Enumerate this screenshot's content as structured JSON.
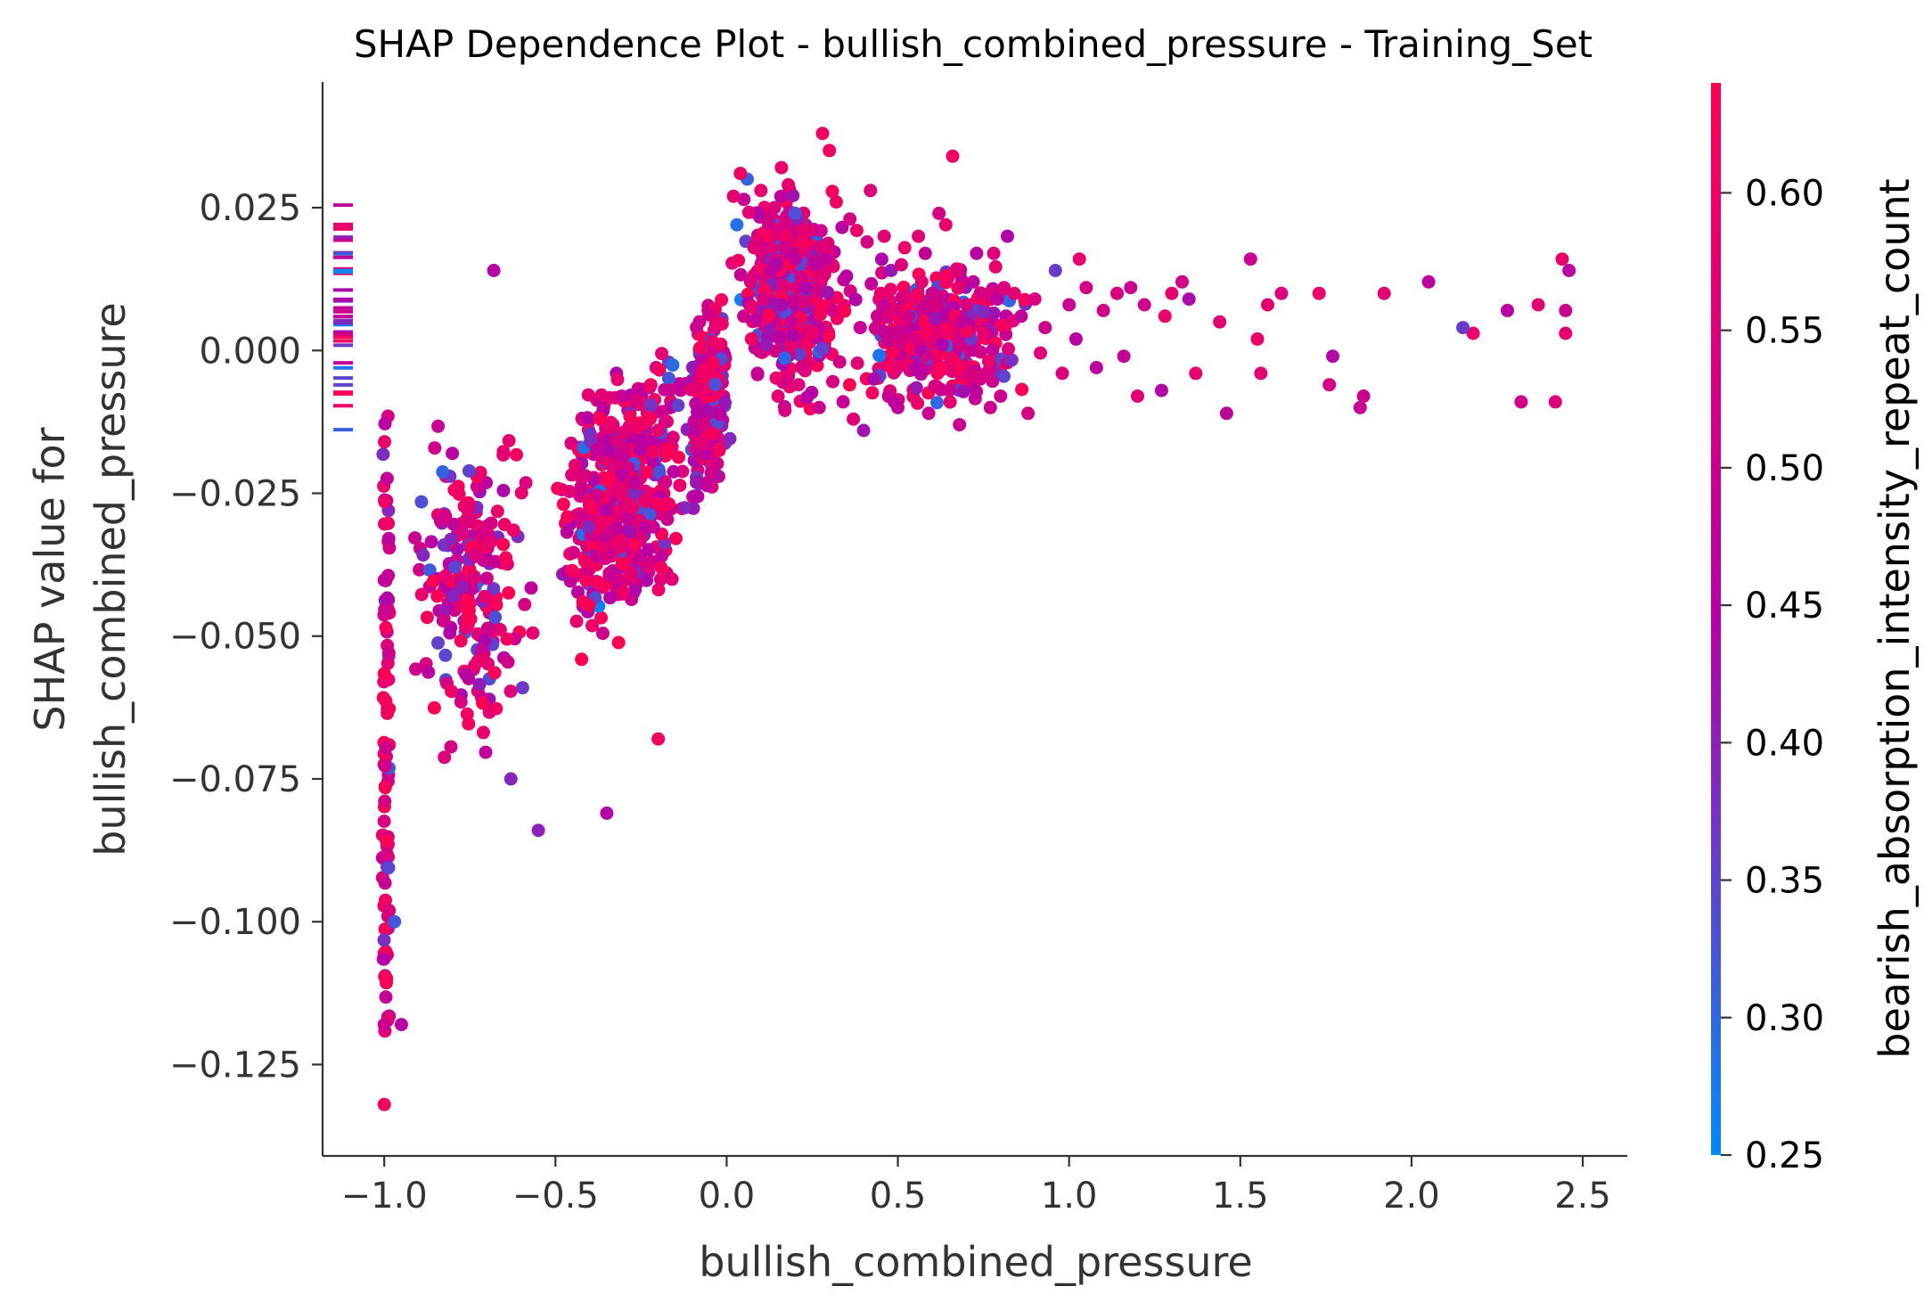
{
  "chart_data": {
    "type": "scatter",
    "title": "SHAP Dependence Plot - bullish_combined_pressure - Training_Set",
    "xlabel": "bullish_combined_pressure",
    "ylabel_line1": "SHAP value for",
    "ylabel_line2": "bullish_combined_pressure",
    "xlim": [
      -1.18,
      2.63
    ],
    "ylim": [
      -0.141,
      0.047
    ],
    "x_ticks": [
      -1.0,
      -0.5,
      0.0,
      0.5,
      1.0,
      1.5,
      2.0,
      2.5
    ],
    "x_tick_labels": [
      "−1.0",
      "−0.5",
      "0.0",
      "0.5",
      "1.0",
      "1.5",
      "2.0",
      "2.5"
    ],
    "y_ticks": [
      0.025,
      0.0,
      -0.025,
      -0.05,
      -0.075,
      -0.1,
      -0.125
    ],
    "y_tick_labels": [
      "0.025",
      "0.000",
      "−0.025",
      "−0.050",
      "−0.075",
      "−0.100",
      "−0.125"
    ],
    "grid": false,
    "colorbar": {
      "label": "bearish_absorption_intensity_repeat_count",
      "range": [
        0.25,
        0.64
      ],
      "ticks": [
        0.6,
        0.55,
        0.5,
        0.45,
        0.4,
        0.35,
        0.3,
        0.25
      ],
      "tick_labels": [
        "0.60",
        "0.55",
        "0.50",
        "0.45",
        "0.40",
        "0.35",
        "0.30",
        "0.25"
      ],
      "color_low": "#008afb",
      "color_mid": "#b700a6",
      "color_high": "#ff0052"
    },
    "series": [
      {
        "x": [
          2.44,
          2.45,
          2.45,
          2.42,
          2.46,
          2.32,
          2.37,
          2.28,
          2.18,
          2.15,
          2.05,
          1.92,
          1.86,
          1.85,
          1.76,
          1.77,
          1.73,
          1.62,
          1.58,
          1.55,
          1.53,
          1.56,
          1.46,
          1.44,
          1.37,
          1.35,
          1.33,
          1.3,
          1.28,
          1.27,
          1.22,
          1.2,
          1.18,
          1.16,
          1.14,
          1.1,
          1.08,
          1.05,
          1.03,
          1.02,
          1.0,
          0.98,
          0.96,
          0.93,
          0.9,
          0.88,
          0.86,
          0.84,
          0.82,
          0.8,
          0.78,
          0.76,
          0.74,
          0.72,
          0.7,
          0.68,
          0.66,
          0.64,
          0.62,
          0.6,
          0.58,
          0.56,
          0.54,
          0.52,
          0.5,
          0.48,
          0.46,
          0.44,
          0.42,
          0.4,
          0.38,
          0.36,
          0.34,
          0.32,
          0.3,
          0.28,
          0.26,
          0.24,
          0.22,
          0.2,
          0.18,
          0.16,
          0.14,
          0.12,
          0.1,
          0.08,
          0.06,
          0.04,
          0.03,
          0.02,
          0.05,
          0.07,
          0.09,
          0.11,
          0.13,
          0.15,
          0.17,
          0.19,
          0.21,
          0.23,
          0.25,
          0.27,
          0.29,
          0.31,
          0.33,
          0.35,
          0.37,
          0.39,
          0.41,
          0.43,
          0.45,
          0.47,
          0.49,
          0.51,
          0.53,
          0.55,
          0.57,
          0.59,
          0.61,
          0.63,
          0.65,
          0.67,
          0.69,
          0.71,
          0.73,
          0.75,
          0.77,
          0.79,
          0.81
        ],
        "y": [
          0.016,
          0.007,
          0.003,
          -0.009,
          0.014,
          -0.009,
          0.008,
          0.007,
          0.003,
          0.004,
          0.012,
          0.01,
          -0.008,
          -0.01,
          -0.006,
          -0.001,
          0.01,
          0.01,
          0.008,
          0.002,
          0.016,
          -0.004,
          -0.011,
          0.005,
          -0.004,
          0.009,
          0.012,
          0.01,
          0.006,
          -0.007,
          0.008,
          -0.008,
          0.011,
          -0.001,
          0.01,
          0.007,
          -0.003,
          0.011,
          0.016,
          0.002,
          0.008,
          -0.004,
          0.014,
          0.004,
          0.009,
          -0.011,
          0.006,
          0.01,
          0.02,
          -0.008,
          0.017,
          0.003,
          -0.005,
          0.012,
          0.008,
          -0.013,
          0.034,
          0.022,
          0.024,
          0.01,
          0.017,
          0.02,
          0.006,
          0.018,
          -0.01,
          0.014,
          0.02,
          0.006,
          0.028,
          -0.014,
          0.021,
          0.023,
          -0.009,
          0.026,
          0.035,
          0.038,
          0.015,
          0.021,
          0.019,
          0.024,
          0.029,
          0.032,
          0.025,
          0.02,
          0.028,
          0.018,
          0.03,
          0.031,
          0.022,
          0.027,
          0.006,
          0.012,
          -0.004,
          0.009,
          0.014,
          -0.008,
          0.018,
          0.005,
          -0.006,
          0.011,
          0.003,
          -0.01,
          0.016,
          0.007,
          -0.002,
          0.013,
          -0.012,
          0.004,
          0.019,
          -0.005,
          0.01,
          0.002,
          -0.009,
          0.015,
          0.006,
          -0.003,
          0.012,
          -0.011,
          0.008,
          0.001,
          -0.007,
          0.014,
          0.005,
          -0.004,
          0.017,
          0.003,
          -0.01,
          0.009,
          0.011
        ],
        "c": [
          0.59,
          0.5,
          0.58,
          0.55,
          0.46,
          0.52,
          0.57,
          0.45,
          0.59,
          0.36,
          0.46,
          0.56,
          0.5,
          0.49,
          0.52,
          0.44,
          0.58,
          0.55,
          0.57,
          0.59,
          0.5,
          0.57,
          0.47,
          0.57,
          0.58,
          0.43,
          0.52,
          0.57,
          0.59,
          0.44,
          0.51,
          0.56,
          0.5,
          0.48,
          0.54,
          0.52,
          0.46,
          0.53,
          0.58,
          0.45,
          0.49,
          0.55,
          0.36,
          0.5,
          0.54,
          0.52,
          0.47,
          0.57,
          0.44,
          0.5,
          0.55,
          0.49,
          0.52,
          0.46,
          0.54,
          0.5,
          0.6,
          0.58,
          0.52,
          0.51,
          0.48,
          0.56,
          0.36,
          0.59,
          0.47,
          0.41,
          0.57,
          0.5,
          0.55,
          0.42,
          0.59,
          0.53,
          0.49,
          0.6,
          0.6,
          0.6,
          0.46,
          0.57,
          0.61,
          0.33,
          0.58,
          0.59,
          0.55,
          0.61,
          0.58,
          0.56,
          0.31,
          0.6,
          0.29,
          0.57,
          0.51,
          0.55,
          0.48,
          0.53,
          0.46,
          0.57,
          0.52,
          0.49,
          0.55,
          0.44,
          0.58,
          0.5,
          0.47,
          0.54,
          0.52,
          0.45,
          0.56,
          0.49,
          0.53,
          0.43,
          0.58,
          0.5,
          0.47,
          0.55,
          0.52,
          0.46,
          0.57,
          0.49,
          0.54,
          0.44,
          0.51,
          0.56,
          0.48,
          0.53,
          0.45,
          0.58,
          0.5,
          0.47,
          0.55
        ]
      }
    ],
    "dense_clusters": [
      {
        "x_range": [
          -1.0,
          -0.99
        ],
        "y_range": [
          -0.12,
          -0.011
        ],
        "count": 90
      },
      {
        "x_range": [
          -0.95,
          -0.55
        ],
        "y_range": [
          -0.075,
          -0.005
        ],
        "count": 220
      },
      {
        "x_range": [
          -0.55,
          -0.05
        ],
        "y_range": [
          -0.055,
          0.003
        ],
        "count": 520
      },
      {
        "x_range": [
          -0.12,
          0.02
        ],
        "y_range": [
          -0.03,
          0.012
        ],
        "count": 220
      },
      {
        "x_range": [
          0.0,
          0.38
        ],
        "y_range": [
          -0.012,
          0.032
        ],
        "count": 460
      },
      {
        "x_range": [
          0.3,
          0.95
        ],
        "y_range": [
          -0.013,
          0.018
        ],
        "count": 360
      }
    ],
    "marginal_rug": {
      "x_position": -1.12,
      "y_range": [
        -0.016,
        0.026
      ]
    }
  }
}
